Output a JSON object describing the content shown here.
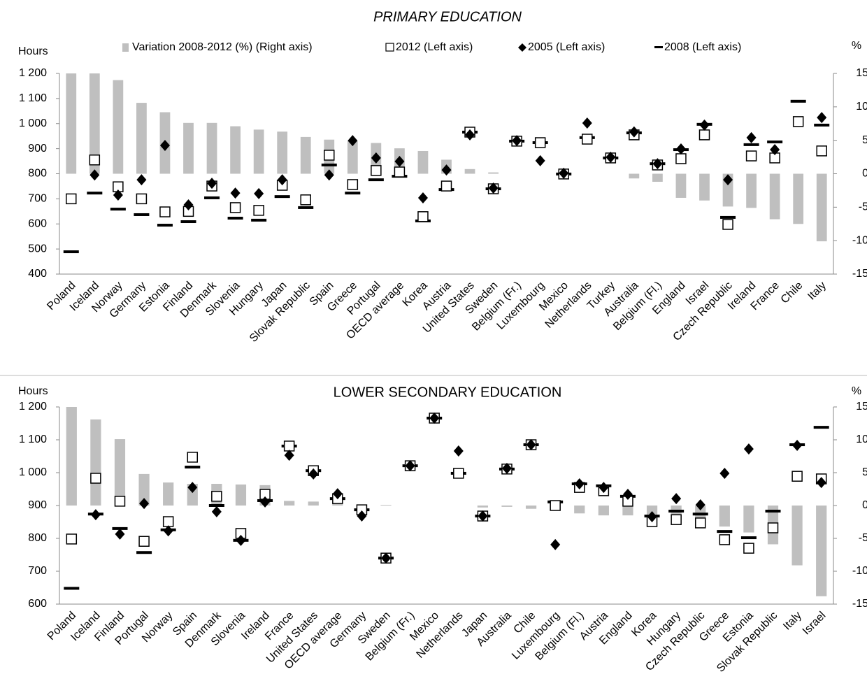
{
  "chart_data": [
    {
      "type": "combo",
      "title": "PRIMARY EDUCATION",
      "y_label": "Hours",
      "y2_label": "%",
      "categories": [
        "Poland",
        "Iceland",
        "Norway",
        "Germany",
        "Estonia",
        "Finland",
        "Denmark",
        "Slovenia",
        "Hungary",
        "Japan",
        "Slovak Republic",
        "Spain",
        "Greece",
        "Portugal",
        "OECD average",
        "Korea",
        "Austria",
        "United States",
        "Sweden",
        "Belgium (Fr.)",
        "Luxembourg",
        "Mexico",
        "Netherlands",
        "Turkey",
        "Australia",
        "Belgium (Fl.)",
        "England",
        "Israel",
        "Czech Republic",
        "Ireland",
        "France",
        "Chile",
        "Italy"
      ],
      "ylim": [
        400,
        1200
      ],
      "yticks": [
        400,
        500,
        600,
        700,
        800,
        900,
        {
          "value": 1000,
          "label": "1 000"
        },
        {
          "value": 1100,
          "label": "1 100"
        },
        {
          "value": 1200,
          "label": "1 200"
        }
      ],
      "y2lim": [
        -15,
        15
      ],
      "y2ticks": [
        -15,
        -10,
        -5,
        0,
        5,
        10,
        15
      ],
      "series": [
        {
          "name": "Variation 2008-2012 (%) (Right axis)",
          "marker": "bar",
          "axis": "y2",
          "color": "#bfbfbf",
          "values": [
            15,
            15,
            14.0,
            10.6,
            9.2,
            7.6,
            7.6,
            7.1,
            6.6,
            6.3,
            5.5,
            5.1,
            4.9,
            4.6,
            3.8,
            3.4,
            2.1,
            0.7,
            0.2,
            0,
            0,
            0,
            0,
            0,
            -0.7,
            -1.2,
            -3.6,
            -4.0,
            -4.9,
            -5.1,
            -6.8,
            -7.5,
            -10.1
          ]
        },
        {
          "name": "2012 (Left axis)",
          "marker": "square",
          "color": "#000000",
          "values": [
            700,
            855,
            748,
            700,
            648,
            650,
            751,
            665,
            654,
            754,
            696,
            874,
            757,
            813,
            807,
            629,
            751,
            966,
            740,
            930,
            924,
            799,
            938,
            863,
            955,
            835,
            860,
            955,
            598,
            871,
            863,
            1008,
            891
          ]
        },
        {
          "name": "2005 (Left axis)",
          "marker": "diamond",
          "color": "#000000",
          "values": [
            null,
            795,
            715,
            776,
            913,
            676,
            762,
            723,
            721,
            776,
            null,
            795,
            932,
            863,
            849,
            704,
            815,
            955,
            743,
            932,
            852,
            802,
            1002,
            866,
            967,
            840,
            899,
            994,
            776,
            944,
            896,
            null,
            1024
          ]
        },
        {
          "name": "2008 (Left axis)",
          "marker": "dash",
          "color": "#000000",
          "values": [
            489,
            723,
            659,
            637,
            595,
            609,
            704,
            623,
            615,
            709,
            665,
            835,
            723,
            776,
            790,
            612,
            737,
            966,
            740,
            930,
            924,
            799,
            944,
            863,
            963,
            840,
            896,
            997,
            626,
            916,
            927,
            1089,
            994
          ]
        }
      ]
    },
    {
      "type": "combo",
      "title": "LOWER SECONDARY EDUCATION",
      "y_label": "Hours",
      "y2_label": "%",
      "categories": [
        "Poland",
        "Iceland",
        "Finland",
        "Portugal",
        "Norway",
        "Spain",
        "Denmark",
        "Slovenia",
        "Ireland",
        "France",
        "United States",
        "OECD average",
        "Germany",
        "Sweden",
        "Belgium (Fr.)",
        "Mexico",
        "Netherlands",
        "Japan",
        "Australia",
        "Chile",
        "Luxembourg",
        "Belgium (Fl.)",
        "Austria",
        "England",
        "Korea",
        "Hungary",
        "Czech Republic",
        "Greece",
        "Estonia",
        "Slovak Republic",
        "Italy",
        "Israel"
      ],
      "ylim": [
        600,
        1200
      ],
      "yticks": [
        600,
        700,
        800,
        900,
        {
          "value": 1000,
          "label": "1 000"
        },
        {
          "value": 1100,
          "label": "1 100"
        },
        {
          "value": 1200,
          "label": "1 200"
        }
      ],
      "y2lim": [
        -15,
        15
      ],
      "y2ticks": [
        -15,
        -10,
        -5,
        0,
        5,
        10,
        15
      ],
      "series": [
        {
          "marker": "bar",
          "axis": "y2",
          "color": "#bfbfbf",
          "values": [
            15,
            13.1,
            10.1,
            4.8,
            3.5,
            3.3,
            3.3,
            3.2,
            3.1,
            0.7,
            0.6,
            0.4,
            0.1,
            0.1,
            0,
            0,
            0,
            -0.3,
            -0.2,
            -0.5,
            0,
            -1.2,
            -1.5,
            -1.5,
            -1.8,
            -2.0,
            -2.3,
            -3.2,
            -4.1,
            -5.9,
            -9.1,
            -13.8
          ]
        },
        {
          "marker": "square",
          "color": "#000000",
          "values": [
            798,
            983,
            913,
            791,
            851,
            1047,
            928,
            815,
            934,
            1081,
            1006,
            921,
            887,
            740,
            1021,
            1166,
            998,
            868,
            1011,
            1085,
            900,
            955,
            945,
            913,
            851,
            857,
            847,
            796,
            770,
            832,
            989,
            981
          ]
        },
        {
          "marker": "diamond",
          "color": "#000000",
          "values": [
            null,
            872,
            813,
            906,
            823,
            955,
            881,
            794,
            911,
            1053,
            996,
            936,
            868,
            740,
            1021,
            1166,
            1066,
            868,
            1013,
            1085,
            781,
            966,
            955,
            934,
            866,
            921,
            902,
            998,
            1072,
            null,
            1083,
            970
          ]
        },
        {
          "marker": "dash",
          "color": "#000000",
          "values": [
            648,
            874,
            830,
            757,
            826,
            1017,
            900,
            794,
            915,
            1081,
            1006,
            921,
            887,
            740,
            1021,
            1166,
            998,
            868,
            1011,
            1085,
            911,
            966,
            960,
            928,
            868,
            883,
            874,
            821,
            802,
            883,
            1085,
            1138
          ]
        }
      ]
    }
  ]
}
